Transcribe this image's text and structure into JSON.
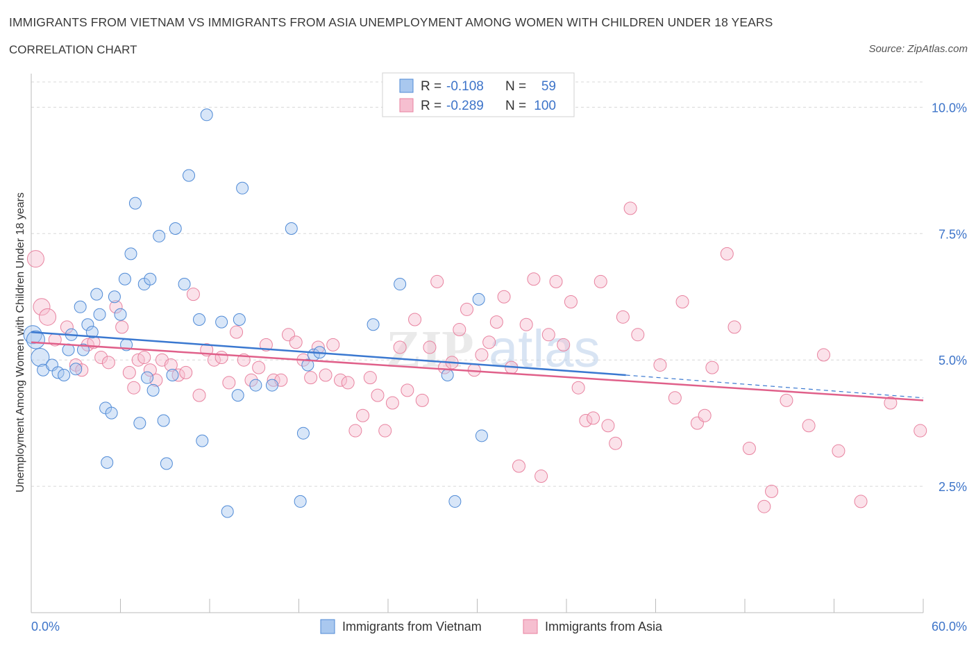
{
  "header": {
    "title": "IMMIGRANTS FROM VIETNAM VS IMMIGRANTS FROM ASIA UNEMPLOYMENT AMONG WOMEN WITH CHILDREN UNDER 18 YEARS",
    "subtitle": "CORRELATION CHART",
    "source": "Source: ZipAtlas.com"
  },
  "watermark": {
    "part1": "ZIP",
    "part2": "atlas"
  },
  "stats_box": {
    "rows": [
      {
        "r_label": "R = ",
        "r_value": "-0.108",
        "n_label": "N = ",
        "n_value": "59"
      },
      {
        "r_label": "R = ",
        "r_value": "-0.289",
        "n_label": "N = ",
        "n_value": "100"
      }
    ]
  },
  "colors": {
    "vietnam_fill": "#a9c8ef",
    "vietnam_stroke": "#4f8ad6",
    "vietnam_line": "#3a78d0",
    "asia_fill": "#f6bfd0",
    "asia_stroke": "#e8829f",
    "asia_line": "#e0608a",
    "axis_text": "#3d74c9",
    "grid": "#d8d8d8"
  },
  "chart_data": {
    "type": "scatter",
    "title": "IMMIGRANTS FROM VIETNAM VS IMMIGRANTS FROM ASIA UNEMPLOYMENT AMONG WOMEN WITH CHILDREN UNDER 18 YEARS",
    "xlabel": "",
    "ylabel": "Unemployment Among Women with Children Under 18 years",
    "xlim": [
      0,
      60
    ],
    "ylim": [
      0,
      10.5
    ],
    "x_tick_labels": [
      "0.0%",
      "60.0%"
    ],
    "y_ticks": [
      2.5,
      5.0,
      7.5,
      10.0
    ],
    "y_tick_labels": [
      "2.5%",
      "5.0%",
      "7.5%",
      "10.0%"
    ],
    "grid": true,
    "legend_position": "bottom-center",
    "series": [
      {
        "name": "Immigrants from Vietnam",
        "color": "#4f8ad6",
        "trend": {
          "x": [
            0,
            40
          ],
          "y": [
            5.55,
            4.7
          ],
          "dashed_to": [
            60,
            4.25
          ]
        },
        "points": [
          [
            0.1,
            5.5
          ],
          [
            0.3,
            5.4
          ],
          [
            0.6,
            5.05
          ],
          [
            0.8,
            4.8
          ],
          [
            1.4,
            4.9
          ],
          [
            1.8,
            4.75
          ],
          [
            2.2,
            4.7
          ],
          [
            2.5,
            5.2
          ],
          [
            2.7,
            5.5
          ],
          [
            3.0,
            4.82
          ],
          [
            3.3,
            6.05
          ],
          [
            3.5,
            5.2
          ],
          [
            3.8,
            5.7
          ],
          [
            4.1,
            5.55
          ],
          [
            4.4,
            6.3
          ],
          [
            4.6,
            5.9
          ],
          [
            5.0,
            4.05
          ],
          [
            5.1,
            2.97
          ],
          [
            5.4,
            3.95
          ],
          [
            5.6,
            6.25
          ],
          [
            6.0,
            5.9
          ],
          [
            6.3,
            6.6
          ],
          [
            6.4,
            5.3
          ],
          [
            6.7,
            7.1
          ],
          [
            7.0,
            8.1
          ],
          [
            7.3,
            3.75
          ],
          [
            7.6,
            6.5
          ],
          [
            7.8,
            4.65
          ],
          [
            8.0,
            6.6
          ],
          [
            8.2,
            4.4
          ],
          [
            8.6,
            7.45
          ],
          [
            8.9,
            3.8
          ],
          [
            9.1,
            2.95
          ],
          [
            9.5,
            4.7
          ],
          [
            9.7,
            7.6
          ],
          [
            10.3,
            6.5
          ],
          [
            10.6,
            8.65
          ],
          [
            11.3,
            5.8
          ],
          [
            11.5,
            3.4
          ],
          [
            11.8,
            9.85
          ],
          [
            12.8,
            5.75
          ],
          [
            13.2,
            2.0
          ],
          [
            13.9,
            4.3
          ],
          [
            14.0,
            5.8
          ],
          [
            14.2,
            8.4
          ],
          [
            15.1,
            4.5
          ],
          [
            16.2,
            4.5
          ],
          [
            17.5,
            7.6
          ],
          [
            18.1,
            2.2
          ],
          [
            18.3,
            3.55
          ],
          [
            18.6,
            4.9
          ],
          [
            19.0,
            5.1
          ],
          [
            19.4,
            5.15
          ],
          [
            23.0,
            5.7
          ],
          [
            24.8,
            6.5
          ],
          [
            28.0,
            4.7
          ],
          [
            28.5,
            2.2
          ],
          [
            30.1,
            6.2
          ],
          [
            30.3,
            3.5
          ]
        ]
      },
      {
        "name": "Immigrants from Asia",
        "color": "#e8829f",
        "trend": {
          "x": [
            0,
            60
          ],
          "y": [
            5.35,
            4.2
          ]
        },
        "points": [
          [
            0.3,
            7.0
          ],
          [
            0.7,
            6.05
          ],
          [
            1.1,
            5.85
          ],
          [
            1.6,
            5.4
          ],
          [
            2.4,
            5.65
          ],
          [
            3.0,
            4.9
          ],
          [
            3.4,
            4.8
          ],
          [
            3.8,
            5.3
          ],
          [
            4.2,
            5.35
          ],
          [
            4.7,
            5.05
          ],
          [
            5.2,
            4.95
          ],
          [
            5.7,
            6.05
          ],
          [
            6.1,
            5.65
          ],
          [
            6.6,
            4.75
          ],
          [
            6.9,
            4.45
          ],
          [
            7.2,
            5.0
          ],
          [
            7.6,
            5.05
          ],
          [
            8.0,
            4.8
          ],
          [
            8.4,
            4.6
          ],
          [
            8.8,
            5.0
          ],
          [
            9.4,
            4.9
          ],
          [
            9.9,
            4.7
          ],
          [
            10.4,
            4.75
          ],
          [
            10.9,
            6.3
          ],
          [
            11.3,
            4.3
          ],
          [
            11.8,
            5.2
          ],
          [
            12.3,
            5.0
          ],
          [
            12.8,
            5.05
          ],
          [
            13.3,
            4.55
          ],
          [
            13.8,
            5.55
          ],
          [
            14.3,
            5.0
          ],
          [
            14.8,
            4.6
          ],
          [
            15.3,
            4.85
          ],
          [
            15.8,
            5.3
          ],
          [
            16.3,
            4.6
          ],
          [
            16.8,
            4.6
          ],
          [
            17.3,
            5.5
          ],
          [
            17.8,
            5.35
          ],
          [
            18.3,
            5.0
          ],
          [
            18.8,
            4.65
          ],
          [
            19.3,
            5.25
          ],
          [
            19.8,
            4.7
          ],
          [
            20.3,
            5.3
          ],
          [
            20.8,
            4.6
          ],
          [
            21.3,
            4.55
          ],
          [
            21.8,
            3.6
          ],
          [
            22.3,
            3.9
          ],
          [
            22.8,
            4.65
          ],
          [
            23.3,
            4.3
          ],
          [
            23.8,
            3.6
          ],
          [
            24.3,
            4.15
          ],
          [
            24.8,
            5.25
          ],
          [
            25.3,
            4.4
          ],
          [
            25.8,
            5.8
          ],
          [
            26.3,
            4.2
          ],
          [
            26.8,
            5.25
          ],
          [
            27.3,
            6.55
          ],
          [
            27.8,
            4.85
          ],
          [
            28.3,
            4.95
          ],
          [
            28.8,
            5.6
          ],
          [
            29.3,
            6.0
          ],
          [
            29.8,
            4.8
          ],
          [
            30.3,
            5.1
          ],
          [
            30.8,
            5.35
          ],
          [
            31.3,
            5.75
          ],
          [
            31.8,
            6.25
          ],
          [
            32.3,
            4.85
          ],
          [
            32.8,
            2.9
          ],
          [
            33.3,
            5.7
          ],
          [
            33.8,
            6.6
          ],
          [
            34.3,
            2.7
          ],
          [
            34.8,
            5.5
          ],
          [
            35.3,
            6.55
          ],
          [
            35.8,
            5.3
          ],
          [
            36.3,
            6.15
          ],
          [
            36.8,
            4.45
          ],
          [
            37.3,
            3.8
          ],
          [
            37.8,
            3.85
          ],
          [
            38.3,
            6.55
          ],
          [
            38.8,
            3.7
          ],
          [
            39.3,
            3.35
          ],
          [
            39.8,
            5.85
          ],
          [
            40.3,
            8.0
          ],
          [
            40.8,
            5.5
          ],
          [
            42.3,
            4.9
          ],
          [
            43.3,
            4.25
          ],
          [
            43.8,
            6.15
          ],
          [
            44.8,
            3.75
          ],
          [
            45.3,
            3.9
          ],
          [
            45.8,
            4.85
          ],
          [
            46.8,
            7.1
          ],
          [
            47.3,
            5.65
          ],
          [
            48.3,
            3.25
          ],
          [
            49.3,
            2.1
          ],
          [
            49.8,
            2.4
          ],
          [
            50.8,
            4.2
          ],
          [
            52.3,
            3.7
          ],
          [
            53.3,
            5.1
          ],
          [
            54.3,
            3.2
          ],
          [
            55.8,
            2.2
          ]
        ],
        "extra_points": [
          [
            57.8,
            4.15
          ],
          [
            59.8,
            3.6
          ]
        ]
      }
    ]
  },
  "legend": {
    "items": [
      {
        "label": "Immigrants from Vietnam"
      },
      {
        "label": "Immigrants from Asia"
      }
    ]
  }
}
